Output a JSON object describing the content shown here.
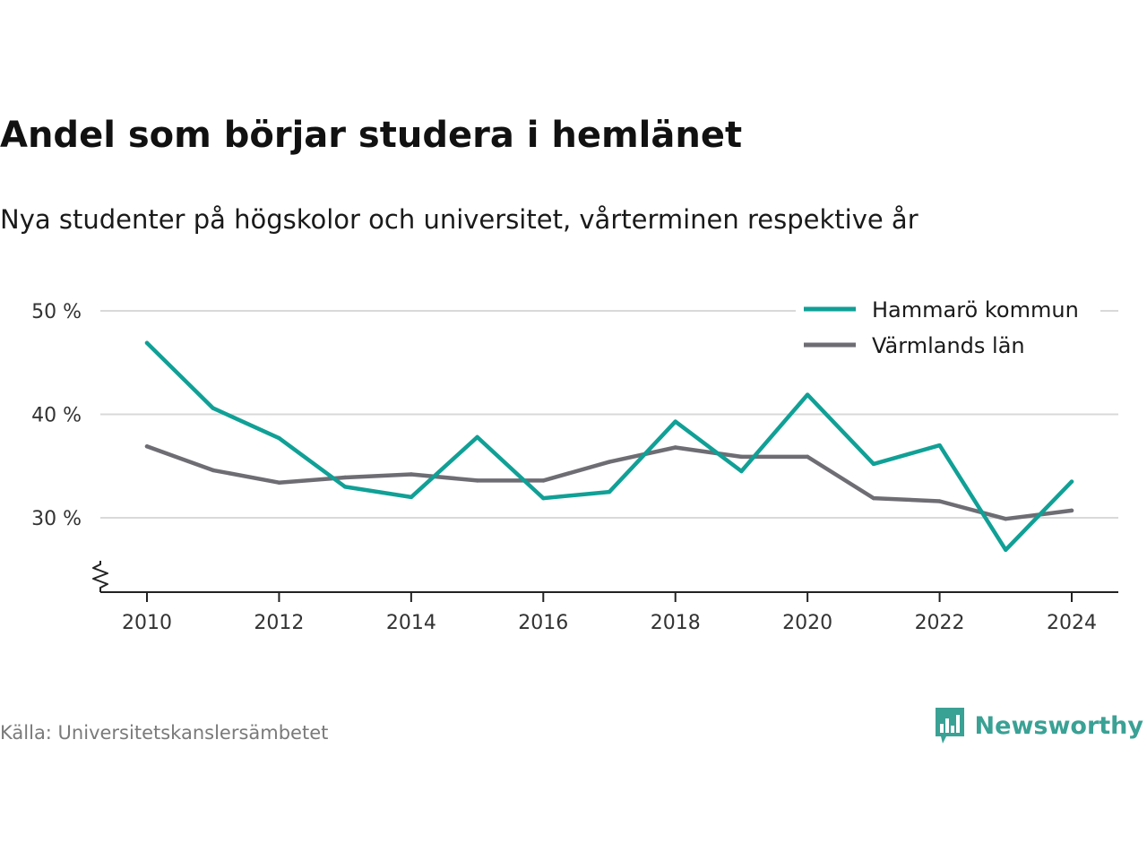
{
  "colors": {
    "hammaro": "#10a096",
    "varmland": "#6e6d74",
    "grid": "#d9d9d9",
    "axis": "#222222",
    "brand": "#3aa195"
  },
  "chart_data": {
    "type": "line",
    "title": "Andel som börjar studera i hemlänet",
    "subtitle": "Nya studenter på högskolor och universitet, vårterminen respektive år",
    "x": [
      2010,
      2011,
      2012,
      2013,
      2014,
      2015,
      2016,
      2017,
      2018,
      2019,
      2020,
      2021,
      2022,
      2023,
      2024
    ],
    "xticks": [
      "2010",
      "2012",
      "2014",
      "2016",
      "2018",
      "2020",
      "2022",
      "2024"
    ],
    "yticks": [
      "30 %",
      "40 %",
      "50 %"
    ],
    "ytick_values": [
      30,
      40,
      50
    ],
    "ylim": [
      22.5,
      50
    ],
    "axis_break": true,
    "grid": true,
    "legend_position": "top-right",
    "series": [
      {
        "name": "Hammarö kommun",
        "color": "#10a096",
        "values": [
          46.9,
          40.6,
          37.7,
          33.0,
          32.0,
          37.8,
          31.9,
          32.5,
          39.3,
          34.5,
          41.9,
          35.2,
          37.0,
          26.9,
          33.5
        ]
      },
      {
        "name": "Värmlands län",
        "color": "#6e6d74",
        "values": [
          36.9,
          34.6,
          33.4,
          33.9,
          34.2,
          33.6,
          33.6,
          35.4,
          36.8,
          35.9,
          35.9,
          31.9,
          31.6,
          29.9,
          30.7
        ]
      }
    ]
  },
  "footer": {
    "source": "Källa: Universitetskanslersämbetet",
    "brand": "Newsworthy",
    "logo_icon": "bar-chart-speech-bubble-icon"
  }
}
